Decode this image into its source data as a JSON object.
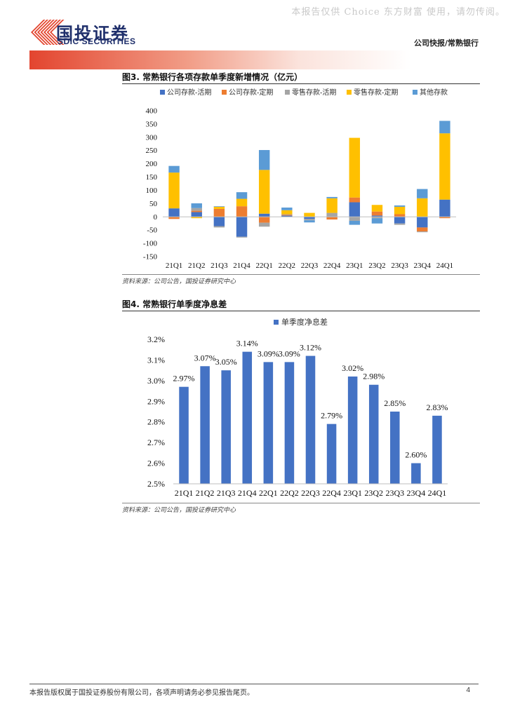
{
  "watermark": "本报告仅供 Choice 东方财富 使用，请勿传阅。",
  "brand": {
    "name_cn": "国投证券",
    "name_en": "SDIC SECURITIES",
    "logo_color": "#e3452f",
    "text_color": "#1f2f6b"
  },
  "header": {
    "right_label": "公司快报/常熟银行"
  },
  "figure3": {
    "title": "图3. 常熟银行各项存款单季度新增情况（亿元）",
    "source": "资料来源：公司公告，国投证券研究中心"
  },
  "figure4": {
    "title": "图4. 常熟银行单季度净息差",
    "source": "资料来源：公司公告，国投证券研究中心"
  },
  "footer": {
    "text": "本报告版权属于国投证券股份有限公司，各项声明请务必参见报告尾页。",
    "page": "4"
  },
  "chart_data": [
    {
      "type": "bar",
      "stacked": true,
      "title": "常熟银行各项存款单季度新增情况（亿元）",
      "categories": [
        "21Q1",
        "21Q2",
        "21Q3",
        "21Q4",
        "22Q1",
        "22Q2",
        "22Q3",
        "22Q4",
        "23Q1",
        "23Q2",
        "23Q3",
        "23Q4",
        "24Q1"
      ],
      "series": [
        {
          "name": "公司存款-活期",
          "color": "#4472c4",
          "values": [
            32,
            18,
            -35,
            -75,
            12,
            5,
            -8,
            0,
            55,
            5,
            -25,
            -40,
            65
          ]
        },
        {
          "name": "公司存款-定期",
          "color": "#ed7d31",
          "values": [
            -8,
            5,
            30,
            40,
            -22,
            3,
            0,
            -10,
            18,
            15,
            10,
            -15,
            -5
          ]
        },
        {
          "name": "零售存款-活期",
          "color": "#a5a5a5",
          "values": [
            0,
            10,
            -5,
            -3,
            -15,
            2,
            -5,
            15,
            -15,
            -5,
            -5,
            -3,
            0
          ]
        },
        {
          "name": "零售存款-定期",
          "color": "#ffc000",
          "values": [
            135,
            -5,
            8,
            28,
            165,
            15,
            15,
            55,
            225,
            25,
            28,
            70,
            250
          ]
        },
        {
          "name": "其他存款",
          "color": "#5b9bd5",
          "values": [
            25,
            18,
            2,
            25,
            75,
            10,
            -8,
            5,
            -15,
            -20,
            5,
            35,
            47
          ]
        }
      ],
      "ylim": [
        -150,
        400
      ],
      "yticks": [
        -150,
        -100,
        -50,
        0,
        50,
        100,
        150,
        200,
        250,
        300,
        350,
        400
      ],
      "legend": "top"
    },
    {
      "type": "bar",
      "title": "常熟银行单季度净息差",
      "categories": [
        "21Q1",
        "21Q2",
        "21Q3",
        "21Q4",
        "22Q1",
        "22Q2",
        "22Q3",
        "22Q4",
        "23Q1",
        "23Q2",
        "23Q3",
        "23Q4",
        "24Q1"
      ],
      "series": [
        {
          "name": "单季度净息差",
          "color": "#4472c4",
          "values": [
            2.97,
            3.07,
            3.05,
            3.14,
            3.09,
            3.09,
            3.12,
            2.79,
            3.02,
            2.98,
            2.85,
            2.6,
            2.83
          ]
        }
      ],
      "unit": "%",
      "ylim": [
        2.5,
        3.2
      ],
      "yticks": [
        2.5,
        2.6,
        2.7,
        2.8,
        2.9,
        3.0,
        3.1,
        3.2
      ],
      "legend": "top"
    }
  ]
}
